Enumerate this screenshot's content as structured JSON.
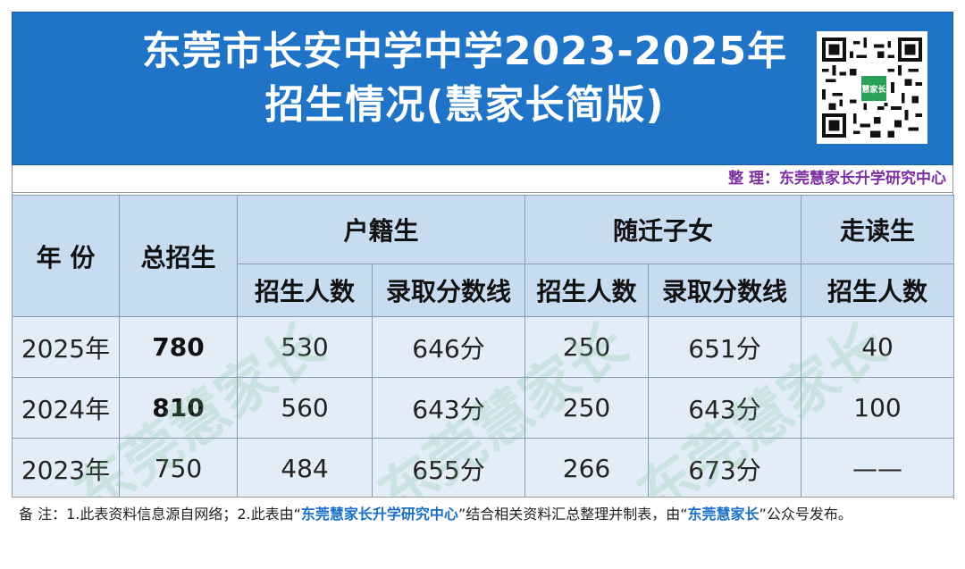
{
  "header": {
    "title_line1": "东莞市长安中学中学2023-2025年",
    "title_line2": "招生情况(慧家长简版)",
    "qr_logo": "慧家长"
  },
  "credit": "整 理：东莞慧家长升学研究中心",
  "table": {
    "col_year": "年 份",
    "col_total": "总招生",
    "group_huji": "户籍生",
    "group_suiqian": "随迁子女",
    "group_zoudu": "走读生",
    "sub_count": "招生人数",
    "sub_score": "录取分数线",
    "rows": [
      {
        "year": "2025年",
        "total": "780",
        "huji_count": "530",
        "huji_score": "646分",
        "sq_count": "250",
        "sq_score": "651分",
        "zd_count": "40"
      },
      {
        "year": "2024年",
        "total": "810",
        "huji_count": "560",
        "huji_score": "643分",
        "sq_count": "250",
        "sq_score": "643分",
        "zd_count": "100"
      },
      {
        "year": "2023年",
        "total": "750",
        "huji_count": "484",
        "huji_score": "655分",
        "sq_count": "266",
        "sq_score": "673分",
        "zd_count": "——"
      }
    ]
  },
  "watermark": "东莞慧家长",
  "note": {
    "prefix": "备 注：1.此表资料信息源自网络；2.此表由“",
    "org": "东莞慧家长升学研究中心",
    "middle": "”结合相关资料汇总整理并制表，由“",
    "account": "东莞慧家长",
    "suffix": "”公众号发布。"
  },
  "colors": {
    "banner": "#1f74c8",
    "header_cell": "#c7dcf1",
    "data_cell": "#e2edf8",
    "credit": "#7b2fa0",
    "highlight": "#1a6fc4"
  }
}
